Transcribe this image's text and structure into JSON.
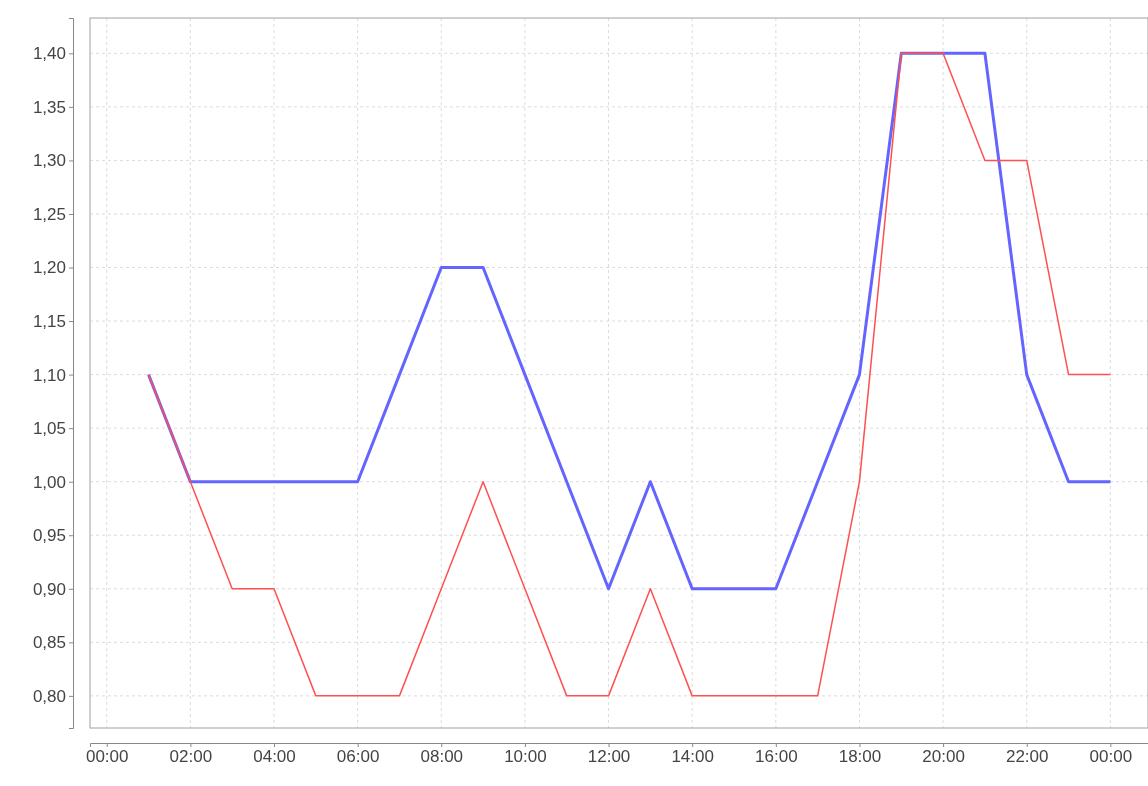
{
  "chart_data": {
    "type": "line",
    "x": [
      1,
      2,
      3,
      4,
      5,
      6,
      7,
      8,
      9,
      10,
      11,
      12,
      13,
      14,
      15,
      16,
      17,
      18,
      19,
      20,
      21,
      22,
      23,
      24
    ],
    "series": [
      {
        "color": "#6464ff",
        "values": [
          1.1,
          1.0,
          1.0,
          1.0,
          1.0,
          1.0,
          1.1,
          1.2,
          1.2,
          1.1,
          1.0,
          0.9,
          1.0,
          0.9,
          0.9,
          0.9,
          1.0,
          1.1,
          1.4,
          1.4,
          1.4,
          1.1,
          1.0,
          1.0
        ]
      },
      {
        "color": "#ff5050",
        "values": [
          1.1,
          1.0,
          0.9,
          0.9,
          0.8,
          0.8,
          0.8,
          0.9,
          1.0,
          0.9,
          0.8,
          0.8,
          0.9,
          0.8,
          0.8,
          0.8,
          0.8,
          1.0,
          1.4,
          1.4,
          1.3,
          1.3,
          1.1,
          1.1
        ]
      }
    ],
    "xlim": [
      -0.4,
      24.9
    ],
    "ylim": [
      0.77,
      1.433
    ],
    "xticks": [
      {
        "value": 0,
        "label": "00:00"
      },
      {
        "value": 2,
        "label": "02:00"
      },
      {
        "value": 4,
        "label": "04:00"
      },
      {
        "value": 6,
        "label": "06:00"
      },
      {
        "value": 8,
        "label": "08:00"
      },
      {
        "value": 10,
        "label": "10:00"
      },
      {
        "value": 12,
        "label": "12:00"
      },
      {
        "value": 14,
        "label": "14:00"
      },
      {
        "value": 16,
        "label": "16:00"
      },
      {
        "value": 18,
        "label": "18:00"
      },
      {
        "value": 20,
        "label": "20:00"
      },
      {
        "value": 22,
        "label": "22:00"
      },
      {
        "value": 24,
        "label": "00:00"
      }
    ],
    "yticks": [
      {
        "value": 0.8,
        "label": "0,80"
      },
      {
        "value": 0.85,
        "label": "0,85"
      },
      {
        "value": 0.9,
        "label": "0,90"
      },
      {
        "value": 0.95,
        "label": "0,95"
      },
      {
        "value": 1.0,
        "label": "1,00"
      },
      {
        "value": 1.05,
        "label": "1,05"
      },
      {
        "value": 1.1,
        "label": "1,10"
      },
      {
        "value": 1.15,
        "label": "1,15"
      },
      {
        "value": 1.2,
        "label": "1,20"
      },
      {
        "value": 1.25,
        "label": "1,25"
      },
      {
        "value": 1.3,
        "label": "1,30"
      },
      {
        "value": 1.35,
        "label": "1,35"
      },
      {
        "value": 1.4,
        "label": "1,40"
      }
    ],
    "grid": true,
    "marker": "none",
    "line_style": "solid"
  }
}
